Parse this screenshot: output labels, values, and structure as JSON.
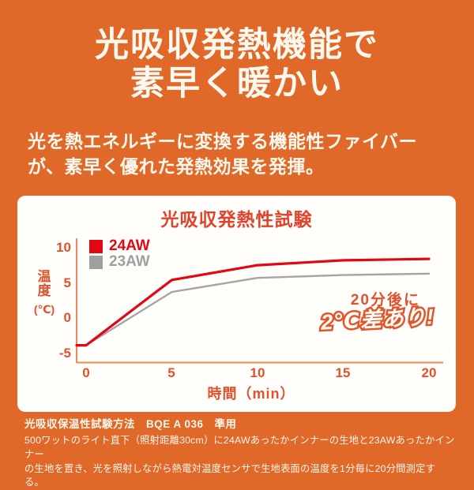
{
  "header": {
    "title_line1": "光吸収発熱機能で",
    "title_line2": "素早く暖かい",
    "lead_line1": "光を熱エネルギーに変換する機能性ファイバー",
    "lead_line2": "が、素早く優れた発熱効果を発揮。"
  },
  "chart": {
    "title": "光吸収発熱性試験",
    "ylabel": "温度",
    "ylabel_unit": "(℃)",
    "xlabel": "時間（min）",
    "annotation_line1": "20分後に",
    "annotation_line2": "2℃差あり!"
  },
  "chart_data": {
    "type": "line",
    "title": "光吸収発熱性試験",
    "xlabel": "時間（min）",
    "ylabel": "温度（℃）",
    "x": [
      0,
      5,
      10,
      15,
      20
    ],
    "x_ticks": [
      "0",
      "5",
      "10",
      "15",
      "20"
    ],
    "y_ticks": [
      "10",
      "5",
      "0",
      "-5"
    ],
    "xlim": [
      0,
      20
    ],
    "ylim": [
      -6.5,
      12
    ],
    "grid": false,
    "legend_position": "top-left",
    "series": [
      {
        "name": "24AW",
        "color": "#e30613",
        "values": [
          -4,
          5.3,
          7.4,
          8.1,
          8.3
        ]
      },
      {
        "name": "23AW",
        "color": "#a5a5a6",
        "values": [
          -4,
          3.6,
          5.6,
          6.0,
          6.2
        ]
      }
    ],
    "annotation": "20分後に2℃差あり!（20分後に約2℃の差）"
  },
  "footnote": {
    "method": "光吸収保温性試験方法　BQE A 036　準用",
    "body_line1": "500ワットのライト直下（照射距離30cm）に24AWあったかインナーの生地と23AWあったかインナー",
    "body_line2": "の生地を置き、光を照射しながら熱電対温度センサで生地表面の温度を1分毎に20分間測定する。"
  },
  "colors": {
    "background_orange": "#e06829",
    "text_warm_white": "#fdf8ee",
    "panel_white": "#fffefb",
    "accent_red": "#e30613",
    "series_gray": "#9f9fa0",
    "chart_text_orange": "#e2512b",
    "axis_orange": "#ec8a5c"
  }
}
